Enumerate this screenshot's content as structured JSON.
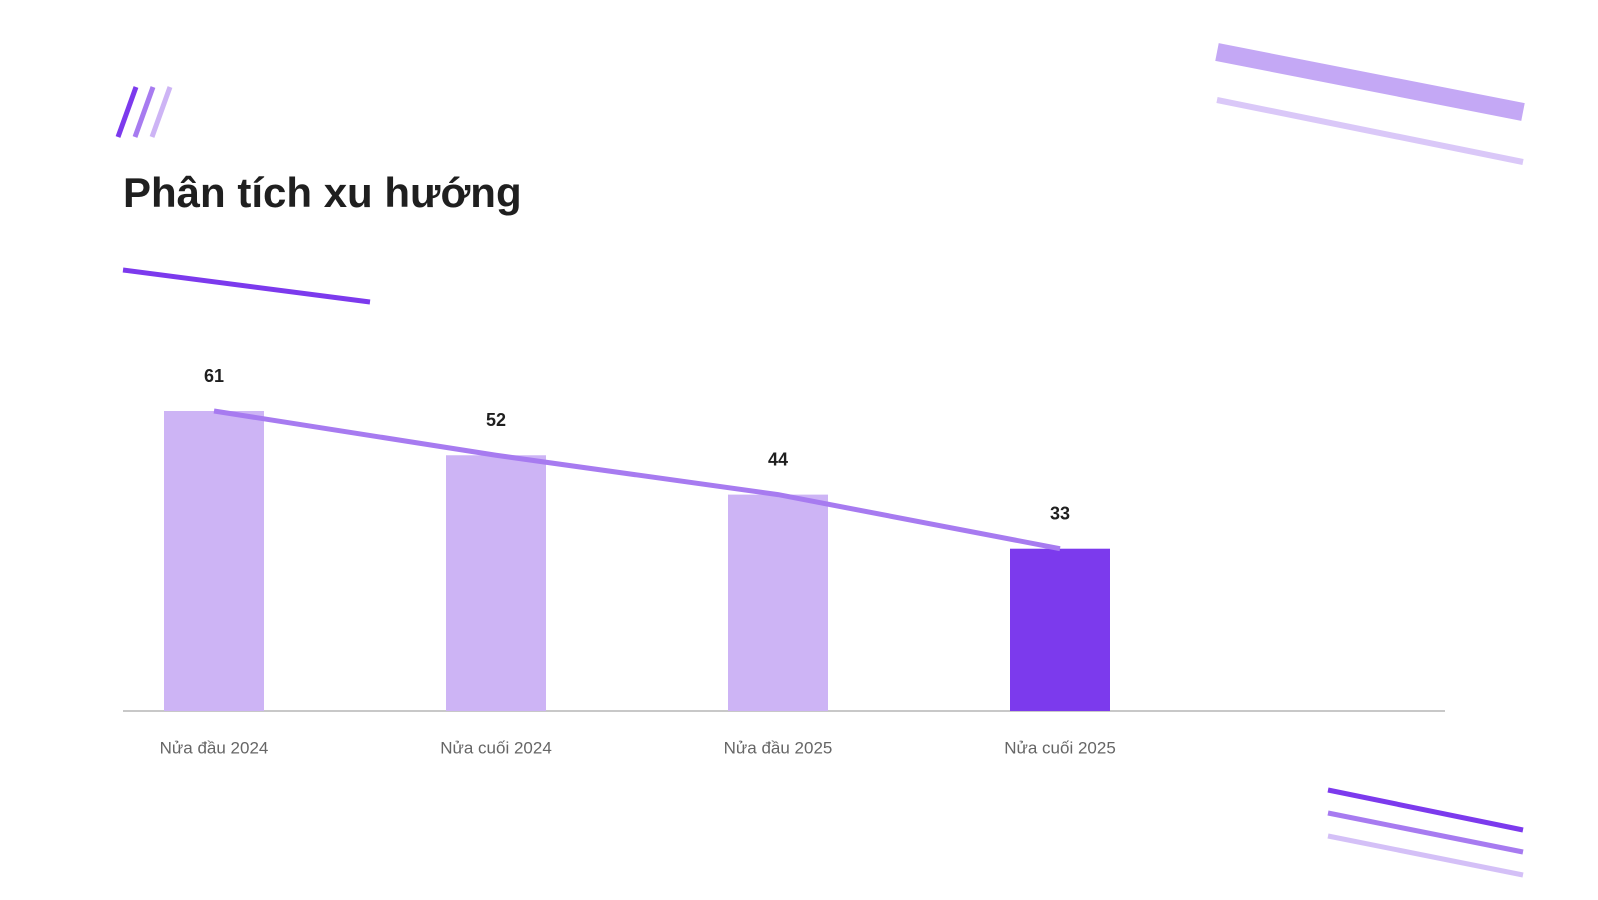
{
  "chart_data": {
    "type": "bar",
    "title": "Phân tích xu hướng",
    "categories": [
      "Nửa đầu 2024",
      "Nửa cuối 2024",
      "Nửa đầu 2025",
      "Nửa cuối 2025"
    ],
    "values": [
      61,
      52,
      44,
      33
    ],
    "colors": [
      "#cdb4f5",
      "#cdb4f5",
      "#cdb4f5",
      "#7c3aed"
    ],
    "trend_line": true,
    "line_color": "#a77bf0"
  }
}
